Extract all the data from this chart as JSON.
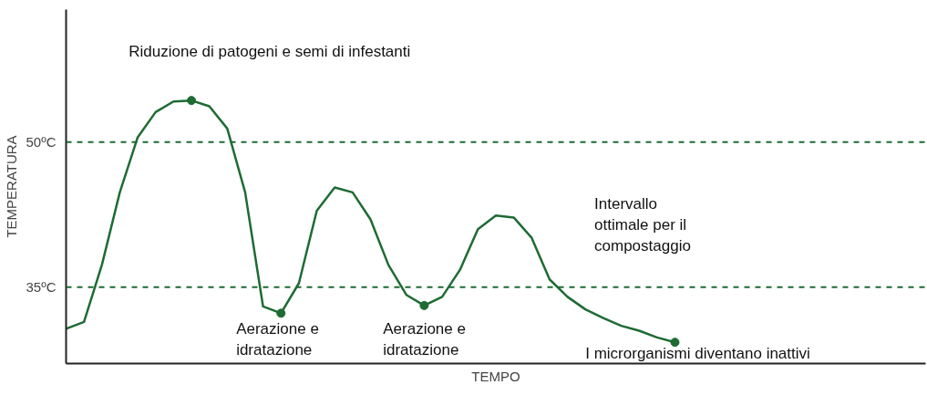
{
  "chart_data": {
    "type": "line",
    "xlabel": "TEMPO",
    "ylabel": "TEMPERATURA",
    "categories": [
      null,
      null,
      null,
      null,
      null,
      null,
      null,
      null,
      null,
      null,
      null,
      null,
      null,
      null,
      null,
      null,
      null,
      null,
      null,
      null,
      null,
      null,
      null,
      null,
      null,
      null,
      null,
      null,
      null,
      null,
      null,
      null,
      null,
      null,
      null,
      null,
      null,
      null,
      null,
      null,
      null,
      null,
      null,
      null,
      null,
      null,
      null,
      null,
      null
    ],
    "series": [
      {
        "color": "#1e6b34",
        "marker": "none",
        "values": [
          30.7,
          31.4,
          37.3,
          44.8,
          50.5,
          53.1,
          54.2,
          54.3,
          53.7,
          51.4,
          44.8,
          33.0,
          32.3,
          35.4,
          42.9,
          45.3,
          44.8,
          42.0,
          37.3,
          34.2,
          33.1,
          34.0,
          36.8,
          41.0,
          42.4,
          42.2,
          40.1,
          35.8,
          34.0,
          32.7,
          31.8,
          31.0,
          30.5,
          29.8,
          29.3,
          null,
          null,
          null,
          null,
          null,
          null,
          null,
          null,
          null,
          null,
          null,
          null,
          null,
          null
        ]
      },
      {
        "type": "scatter",
        "color": "#1e6b34",
        "marker": "circle",
        "values": [
          null,
          null,
          null,
          null,
          null,
          null,
          null,
          54.3,
          null,
          null,
          null,
          null,
          32.3,
          null,
          null,
          null,
          null,
          null,
          null,
          null,
          33.1,
          null,
          null,
          null,
          null,
          null,
          null,
          null,
          null,
          null,
          null,
          null,
          null,
          null,
          29.3,
          null,
          null,
          null,
          null,
          null,
          null,
          null,
          null,
          null,
          null,
          null,
          null,
          null,
          null
        ]
      }
    ],
    "ylim": [
      27.1,
      63.7
    ],
    "yticks": [
      {
        "value": 35,
        "label": "35ºC"
      },
      {
        "value": 50,
        "label": "50ºC"
      }
    ],
    "ref_lines": [
      {
        "axis": "y",
        "value": 50,
        "color": "#1e6b34",
        "line_style": "dashed"
      },
      {
        "axis": "y",
        "value": 35,
        "color": "#1e6b34",
        "line_style": "dashed"
      }
    ],
    "annotations": [
      "Riduzione di patogeni e semi di infestanti",
      "Intervallo\nottimale per il\ncompostaggio",
      "Aerazione e\nidratazione",
      "Aerazione e\nidratazione",
      "I microrganismi diventano inattivi"
    ],
    "tick_labels": "y",
    "grid": false
  }
}
